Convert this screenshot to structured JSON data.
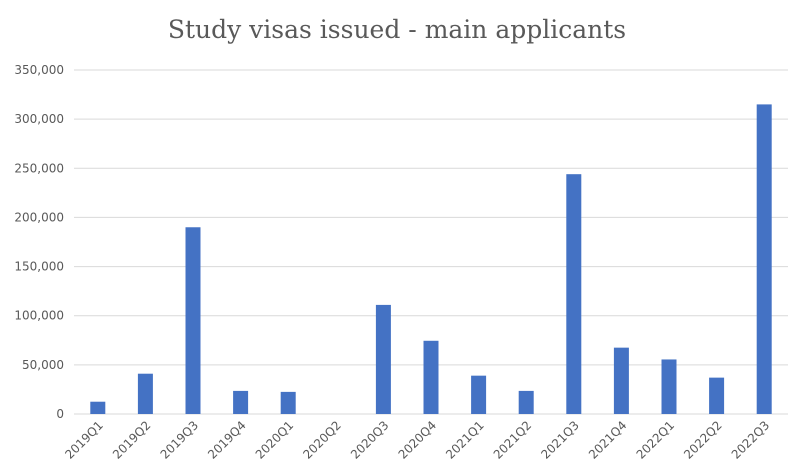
{
  "chart_data": {
    "type": "bar",
    "title": "Study visas issued - main applicants",
    "xlabel": "",
    "ylabel": "",
    "categories": [
      "2019Q1",
      "2019Q2",
      "2019Q3",
      "2019Q4",
      "2020Q1",
      "2020Q2",
      "2020Q3",
      "2020Q4",
      "2021Q1",
      "2021Q2",
      "2021Q3",
      "2021Q4",
      "2022Q1",
      "2022Q2",
      "2022Q3"
    ],
    "series": [
      {
        "values": [
          12500,
          41000,
          190000,
          23500,
          22500,
          0,
          111000,
          74500,
          39000,
          23500,
          244000,
          67500,
          55500,
          37000,
          315000
        ],
        "color": "#4472c4"
      }
    ],
    "ylim": [
      0,
      350000
    ],
    "yticks": [
      0,
      50000,
      100000,
      150000,
      200000,
      250000,
      300000,
      350000
    ],
    "ytick_labels": [
      "0",
      "50,000",
      "100,000",
      "150,000",
      "200,000",
      "250,000",
      "300,000",
      "350,000"
    ],
    "grid": true,
    "legend": "none"
  }
}
